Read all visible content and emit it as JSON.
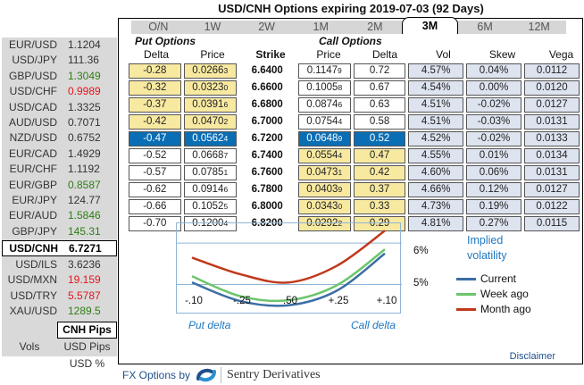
{
  "title": "USD/CNH Options expiring 2019-07-03 (92 Days)",
  "rates": [
    {
      "pair": "EUR/USD",
      "value": "1.1204",
      "trend": "default"
    },
    {
      "pair": "USD/JPY",
      "value": "111.36",
      "trend": "default"
    },
    {
      "pair": "GBP/USD",
      "value": "1.3049",
      "trend": "green"
    },
    {
      "pair": "USD/CHF",
      "value": "0.9989",
      "trend": "red"
    },
    {
      "pair": "USD/CAD",
      "value": "1.3325",
      "trend": "default"
    },
    {
      "pair": "AUD/USD",
      "value": "0.7071",
      "trend": "default"
    },
    {
      "pair": "NZD/USD",
      "value": "0.6752",
      "trend": "default"
    },
    {
      "pair": "EUR/CAD",
      "value": "1.4929",
      "trend": "default"
    },
    {
      "pair": "EUR/CHF",
      "value": "1.1192",
      "trend": "default"
    },
    {
      "pair": "EUR/GBP",
      "value": "0.8587",
      "trend": "green"
    },
    {
      "pair": "EUR/JPY",
      "value": "124.77",
      "trend": "default"
    },
    {
      "pair": "EUR/AUD",
      "value": "1.5846",
      "trend": "green"
    },
    {
      "pair": "GBP/JPY",
      "value": "145.31",
      "trend": "green"
    },
    {
      "pair": "USD/CNH",
      "value": "6.7271",
      "trend": "default",
      "active": true
    },
    {
      "pair": "USD/ILS",
      "value": "3.6236",
      "trend": "default"
    },
    {
      "pair": "USD/MXN",
      "value": "19.159",
      "trend": "red"
    },
    {
      "pair": "USD/TRY",
      "value": "5.5787",
      "trend": "red"
    },
    {
      "pair": "XAU/USD",
      "value": "1289.5",
      "trend": "green"
    }
  ],
  "units": {
    "label": "Vols",
    "options": [
      "CNH Pips",
      "USD Pips",
      "USD %"
    ],
    "selected": "CNH Pips"
  },
  "tabs": [
    "O/N",
    "1W",
    "2W",
    "1M",
    "2M",
    "3M",
    "6M",
    "12M"
  ],
  "active_tab": "3M",
  "sections": {
    "put": "Put Options",
    "call": "Call Options"
  },
  "columns": {
    "put_delta": "Delta",
    "put_price": "Price",
    "strike": "Strike",
    "call_price": "Price",
    "call_delta": "Delta",
    "vol": "Vol",
    "skew": "Skew",
    "vega": "Vega"
  },
  "rows": [
    {
      "put_delta": "-0.28",
      "put_price": "0.0266",
      "put_price_sub": "3",
      "strike": "6.6400",
      "call_price": "0.1147",
      "call_price_sub": "9",
      "call_delta": "0.72",
      "vol": "4.57%",
      "skew": "0.04%",
      "vega": "0.0112",
      "state": "itm_call"
    },
    {
      "put_delta": "-0.32",
      "put_price": "0.0323",
      "put_price_sub": "0",
      "strike": "6.6600",
      "call_price": "0.1005",
      "call_price_sub": "8",
      "call_delta": "0.67",
      "vol": "4.54%",
      "skew": "0.00%",
      "vega": "0.0120",
      "state": "itm_call"
    },
    {
      "put_delta": "-0.37",
      "put_price": "0.0391",
      "put_price_sub": "6",
      "strike": "6.6800",
      "call_price": "0.0874",
      "call_price_sub": "6",
      "call_delta": "0.63",
      "vol": "4.51%",
      "skew": "-0.02%",
      "vega": "0.0127",
      "state": "itm_call"
    },
    {
      "put_delta": "-0.42",
      "put_price": "0.0470",
      "put_price_sub": "2",
      "strike": "6.7000",
      "call_price": "0.0754",
      "call_price_sub": "4",
      "call_delta": "0.58",
      "vol": "4.51%",
      "skew": "-0.03%",
      "vega": "0.0131",
      "state": "itm_call"
    },
    {
      "put_delta": "-0.47",
      "put_price": "0.0562",
      "put_price_sub": "4",
      "strike": "6.7200",
      "call_price": "0.0648",
      "call_price_sub": "9",
      "call_delta": "0.52",
      "vol": "4.52%",
      "skew": "-0.02%",
      "vega": "0.0133",
      "state": "atm"
    },
    {
      "put_delta": "-0.52",
      "put_price": "0.0668",
      "put_price_sub": "7",
      "strike": "6.7400",
      "call_price": "0.0554",
      "call_price_sub": "4",
      "call_delta": "0.47",
      "vol": "4.55%",
      "skew": "0.01%",
      "vega": "0.0134",
      "state": "itm_put"
    },
    {
      "put_delta": "-0.57",
      "put_price": "0.0785",
      "put_price_sub": "1",
      "strike": "6.7600",
      "call_price": "0.0473",
      "call_price_sub": "1",
      "call_delta": "0.42",
      "vol": "4.60%",
      "skew": "0.06%",
      "vega": "0.0131",
      "state": "itm_put"
    },
    {
      "put_delta": "-0.62",
      "put_price": "0.0914",
      "put_price_sub": "6",
      "strike": "6.7800",
      "call_price": "0.0403",
      "call_price_sub": "9",
      "call_delta": "0.37",
      "vol": "4.66%",
      "skew": "0.12%",
      "vega": "0.0127",
      "state": "itm_put"
    },
    {
      "put_delta": "-0.66",
      "put_price": "0.1052",
      "put_price_sub": "5",
      "strike": "6.8000",
      "call_price": "0.0343",
      "call_price_sub": "0",
      "call_delta": "0.33",
      "vol": "4.73%",
      "skew": "0.19%",
      "vega": "0.0122",
      "state": "itm_put"
    },
    {
      "put_delta": "-0.70",
      "put_price": "0.1200",
      "put_price_sub": "4",
      "strike": "6.8200",
      "call_price": "0.0292",
      "call_price_sub": "2",
      "call_delta": "0.29",
      "vol": "4.81%",
      "skew": "0.27%",
      "vega": "0.0115",
      "state": "itm_put"
    }
  ],
  "chart_data": {
    "type": "line",
    "title": "Implied volatility",
    "categories": [
      "-.10",
      "-.25",
      ".50",
      "+.25",
      "+.10"
    ],
    "y_ticks": [
      "5%",
      "6%"
    ],
    "ylim": [
      4.3,
      6.5
    ],
    "xlabel_left": "Put delta",
    "xlabel_right": "Call delta",
    "series": [
      {
        "name": "Current",
        "color": "#3a6ea5",
        "values": [
          5.05,
          4.6,
          4.5,
          4.85,
          5.75
        ]
      },
      {
        "name": "Week ago",
        "color": "#6cc56c",
        "values": [
          5.2,
          4.72,
          4.62,
          4.98,
          5.85
        ]
      },
      {
        "name": "Month ago",
        "color": "#c0391b",
        "values": [
          5.65,
          5.25,
          5.05,
          5.45,
          6.3
        ]
      }
    ]
  },
  "disclaimer": "Disclaimer",
  "footer": {
    "prefix": "FX Options by",
    "brand": "Sentry Derivatives"
  }
}
